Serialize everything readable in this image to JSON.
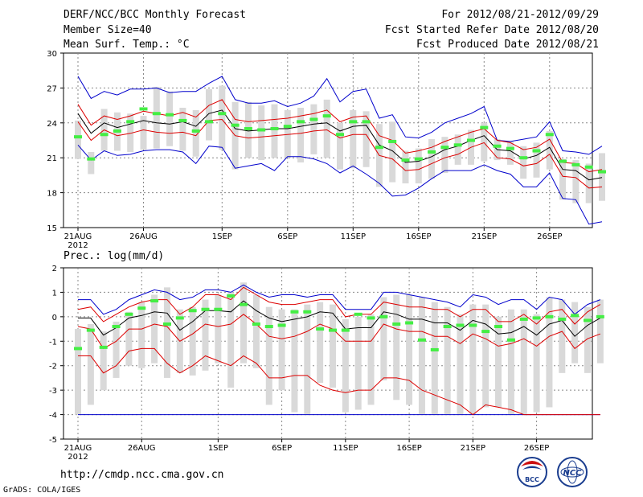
{
  "header": {
    "title": "DERF/NCC/BCC Monthly Forecast",
    "member_size": "Member Size=40",
    "variable": "Mean Surf. Temp.: °C",
    "period": "For 2012/08/21-2012/09/29",
    "refer_date": "Fcst Started Refer Date 2012/08/20",
    "produced_date": "Fcst Produced Date 2012/08/21"
  },
  "footer": {
    "url": "http://cmdp.ncc.cma.gov.cn",
    "credit": "GrADS: COLA/IGES",
    "logo_left": "BCC",
    "logo_right": "NCC"
  },
  "colors": {
    "box": "#d9d9d9",
    "ensemble_mean": "#000000",
    "std_band": "#dd0000",
    "min_max": "#0000cc",
    "observed": "#44ee44",
    "grid": "#888888"
  },
  "chart_data": [
    {
      "type": "box",
      "title": "Mean Surf. Temp.: °C",
      "ylim": [
        15,
        30
      ],
      "yticks": [
        15,
        18,
        21,
        24,
        27,
        30
      ],
      "xlim": [
        0,
        39
      ],
      "xticks": [
        {
          "day": 0,
          "label": "21AUG"
        },
        {
          "day": 5,
          "label": "26AUG"
        },
        {
          "day": 11,
          "label": "1SEP"
        },
        {
          "day": 16,
          "label": "6SEP"
        },
        {
          "day": 21,
          "label": "11SEP"
        },
        {
          "day": 26,
          "label": "16SEP"
        },
        {
          "day": 31,
          "label": "21SEP"
        },
        {
          "day": 36,
          "label": "26SEP"
        }
      ],
      "year_label": "2012",
      "series": {
        "mean": [
          24.8,
          23.1,
          24.0,
          23.6,
          23.9,
          24.2,
          24.0,
          23.9,
          24.1,
          23.7,
          24.8,
          25.1,
          23.5,
          23.3,
          23.4,
          23.5,
          23.5,
          23.7,
          23.9,
          24.0,
          23.3,
          23.7,
          23.8,
          22.1,
          21.6,
          20.6,
          20.7,
          21.1,
          21.7,
          22.0,
          22.5,
          22.9,
          21.7,
          21.6,
          20.9,
          21.2,
          21.9,
          20.0,
          19.9,
          19.1,
          19.3
        ],
        "upper": [
          25.6,
          23.8,
          24.6,
          24.3,
          24.6,
          25.0,
          24.8,
          24.6,
          24.9,
          24.5,
          25.5,
          26.0,
          24.3,
          24.1,
          24.2,
          24.3,
          24.4,
          24.6,
          24.8,
          25.1,
          24.1,
          24.5,
          24.6,
          22.9,
          22.5,
          21.4,
          21.6,
          21.9,
          22.4,
          22.8,
          23.2,
          23.5,
          22.5,
          22.3,
          21.7,
          21.9,
          22.6,
          20.6,
          20.5,
          19.8,
          20.0
        ],
        "lower": [
          24.1,
          22.5,
          23.4,
          22.9,
          23.1,
          23.4,
          23.2,
          23.1,
          23.2,
          22.9,
          24.2,
          24.3,
          22.9,
          22.7,
          22.8,
          22.9,
          23.0,
          23.1,
          23.3,
          23.4,
          22.7,
          23.0,
          23.0,
          21.2,
          20.9,
          19.9,
          20.0,
          20.5,
          21.0,
          21.3,
          21.9,
          22.3,
          21.0,
          20.9,
          20.3,
          20.5,
          21.3,
          19.4,
          19.3,
          18.4,
          18.5
        ],
        "max": [
          28.0,
          26.1,
          26.7,
          26.4,
          26.9,
          26.9,
          27.0,
          26.6,
          26.7,
          26.7,
          27.4,
          28.0,
          26.0,
          25.7,
          25.7,
          25.9,
          25.4,
          25.7,
          26.3,
          27.8,
          25.8,
          26.7,
          26.9,
          24.4,
          24.7,
          22.8,
          22.7,
          23.2,
          24.0,
          24.4,
          24.8,
          25.4,
          22.5,
          22.4,
          22.6,
          22.8,
          24.1,
          21.6,
          21.5,
          21.3,
          22.0
        ],
        "min": [
          22.1,
          20.8,
          21.6,
          21.2,
          21.3,
          21.6,
          21.7,
          21.7,
          21.5,
          20.5,
          22.0,
          21.9,
          20.1,
          20.3,
          20.5,
          19.9,
          21.1,
          21.1,
          20.9,
          20.5,
          19.7,
          20.3,
          19.6,
          18.8,
          17.7,
          17.8,
          18.4,
          19.2,
          19.9,
          19.9,
          19.9,
          20.4,
          19.9,
          19.6,
          18.5,
          18.5,
          19.7,
          17.5,
          17.4,
          15.3,
          15.5
        ],
        "box_top": [
          24.2,
          21.5,
          25.2,
          24.9,
          24.8,
          24.6,
          27.1,
          26.7,
          25.3,
          25.1,
          26.9,
          27.2,
          25.8,
          25.8,
          25.5,
          25.6,
          25.1,
          25.3,
          25.6,
          26.0,
          24.0,
          25.1,
          25.0,
          23.9,
          24.1,
          21.6,
          21.8,
          22.6,
          22.8,
          23.0,
          23.4,
          24.0,
          22.6,
          22.4,
          22.0,
          22.3,
          23.3,
          20.9,
          20.8,
          20.5,
          21.4
        ],
        "box_bottom": [
          20.9,
          19.6,
          21.6,
          21.6,
          21.5,
          21.7,
          21.8,
          22.0,
          21.6,
          21.1,
          22.5,
          21.7,
          20.0,
          21.0,
          20.8,
          21.0,
          21.0,
          20.6,
          21.3,
          21.0,
          20.0,
          20.1,
          20.2,
          18.5,
          18.9,
          18.8,
          18.8,
          19.2,
          19.7,
          20.4,
          20.4,
          20.7,
          20.8,
          20.4,
          19.2,
          19.3,
          20.0,
          17.4,
          17.1,
          17.1,
          17.3
        ],
        "observed": [
          22.8,
          20.9,
          23.0,
          23.3,
          24.1,
          25.2,
          24.8,
          24.7,
          24.2,
          23.3,
          24.1,
          24.8,
          23.8,
          23.5,
          23.4,
          23.5,
          23.7,
          24.1,
          24.3,
          24.6,
          23.0,
          24.1,
          24.1,
          21.9,
          22.4,
          20.8,
          20.9,
          21.5,
          21.9,
          22.1,
          22.5,
          23.6,
          22.0,
          21.8,
          21.0,
          21.6,
          23.0,
          20.7,
          20.4,
          20.2,
          19.8
        ]
      }
    },
    {
      "type": "box",
      "title": "Prec.: log(mm/d)",
      "ylim": [
        -5,
        2
      ],
      "yticks": [
        -5,
        -4,
        -3,
        -2,
        -1,
        0,
        1,
        2
      ],
      "xlim": [
        0,
        39
      ],
      "xticks": [
        {
          "day": 0,
          "label": "21AUG"
        },
        {
          "day": 5,
          "label": "26AUG"
        },
        {
          "day": 11,
          "label": "1SEP"
        },
        {
          "day": 16,
          "label": "6SEP"
        },
        {
          "day": 21,
          "label": "11SEP"
        },
        {
          "day": 26,
          "label": "16SEP"
        },
        {
          "day": 31,
          "label": "21SEP"
        },
        {
          "day": 36,
          "label": "26SEP"
        }
      ],
      "year_label": "2012",
      "series": {
        "mean": [
          -0.05,
          -0.05,
          -0.75,
          -0.45,
          -0.05,
          0.05,
          0.2,
          0.15,
          -0.55,
          -0.2,
          0.25,
          0.25,
          0.2,
          0.65,
          0.25,
          -0.05,
          -0.2,
          -0.1,
          0.0,
          0.2,
          0.15,
          -0.5,
          -0.45,
          -0.45,
          0.2,
          0.1,
          -0.1,
          -0.1,
          -0.25,
          -0.25,
          -0.55,
          -0.15,
          -0.3,
          -0.7,
          -0.65,
          -0.4,
          -0.75,
          -0.3,
          -0.15,
          -0.8,
          -0.35,
          -0.05
        ],
        "upper": [
          0.3,
          0.4,
          -0.2,
          0.1,
          0.4,
          0.6,
          0.7,
          0.7,
          0.1,
          0.4,
          0.9,
          0.9,
          0.7,
          1.2,
          0.9,
          0.6,
          0.5,
          0.5,
          0.6,
          0.7,
          0.7,
          0.0,
          0.1,
          0.1,
          0.6,
          0.5,
          0.4,
          0.4,
          0.3,
          0.3,
          0.0,
          0.3,
          0.3,
          -0.2,
          -0.2,
          0.1,
          -0.3,
          0.2,
          0.3,
          -0.3,
          0.2,
          0.5
        ],
        "lower": [
          -0.4,
          -0.5,
          -1.3,
          -1.0,
          -0.5,
          -0.5,
          -0.3,
          -0.4,
          -1.0,
          -0.7,
          -0.3,
          -0.4,
          -0.3,
          0.1,
          -0.3,
          -0.8,
          -0.9,
          -0.8,
          -0.6,
          -0.3,
          -0.5,
          -1.0,
          -1.0,
          -1.0,
          -0.3,
          -0.5,
          -0.6,
          -0.6,
          -0.8,
          -0.8,
          -1.1,
          -0.7,
          -0.9,
          -1.2,
          -1.1,
          -0.9,
          -1.2,
          -0.8,
          -0.6,
          -1.3,
          -0.9,
          -0.7
        ],
        "max": [
          0.7,
          0.7,
          0.1,
          0.3,
          0.7,
          0.9,
          1.1,
          1.0,
          0.7,
          0.8,
          1.1,
          1.1,
          1.0,
          1.3,
          1.0,
          0.8,
          0.9,
          0.9,
          0.8,
          0.9,
          0.9,
          0.3,
          0.3,
          0.3,
          1.0,
          1.0,
          0.9,
          0.8,
          0.7,
          0.6,
          0.4,
          0.9,
          0.8,
          0.5,
          0.7,
          0.7,
          0.3,
          0.8,
          0.7,
          0.1,
          0.5,
          0.7
        ],
        "min": [
          -4.0,
          -4.0,
          -4.0,
          -4.0,
          -4.0,
          -4.0,
          -4.0,
          -4.0,
          -4.0,
          -4.0,
          -4.0,
          -4.0,
          -4.0,
          -4.0,
          -4.0,
          -4.0,
          -4.0,
          -4.0,
          -4.0,
          -4.0,
          -4.0,
          -4.0,
          -4.0,
          -4.0,
          -4.0,
          -4.0,
          -4.0,
          -4.0,
          -4.0,
          -4.0,
          -4.0,
          -4.0,
          -4.0,
          -4.0,
          -4.0,
          -4.0,
          -4.0,
          -4.0,
          -4.0,
          -4.0,
          -4.0,
          -4.0
        ],
        "min_upper": [
          -1.6,
          -1.6,
          -2.3,
          -2.0,
          -1.4,
          -1.3,
          -1.3,
          -1.9,
          -2.3,
          -2.0,
          -1.6,
          -1.8,
          -2.0,
          -1.6,
          -1.9,
          -2.5,
          -2.5,
          -2.4,
          -2.4,
          -2.8,
          -3.0,
          -3.1,
          -3.0,
          -3.0,
          -2.5,
          -2.5,
          -2.6,
          -3.0,
          -3.2,
          -3.4,
          -3.6,
          -4.0,
          -3.6,
          -3.7,
          -3.8,
          -4.0,
          -4.0,
          -4.0,
          -4.0,
          -4.0,
          -4.0,
          -4.0
        ],
        "box_top": [
          -0.5,
          -0.3,
          -0.6,
          -0.2,
          0.2,
          0.6,
          0.9,
          1.2,
          0.3,
          0.4,
          0.7,
          0.9,
          1.0,
          1.4,
          0.9,
          0.4,
          0.3,
          0.3,
          0.5,
          0.6,
          0.5,
          -0.1,
          0.0,
          0.1,
          0.8,
          0.9,
          0.9,
          0.8,
          0.6,
          0.4,
          0.1,
          0.5,
          0.5,
          0.0,
          0.3,
          0.3,
          0.1,
          0.8,
          0.7,
          0.6,
          0.4,
          0.7
        ],
        "box_bottom": [
          -4.0,
          -3.6,
          -3.0,
          -2.5,
          -2.0,
          -2.1,
          -1.9,
          -2.5,
          -2.3,
          -2.4,
          -2.2,
          -1.9,
          -2.9,
          -1.9,
          -2.1,
          -3.6,
          -3.0,
          -3.9,
          -4.0,
          -2.7,
          -2.9,
          -3.9,
          -3.8,
          -3.6,
          -2.6,
          -3.4,
          -3.6,
          -4.0,
          -4.0,
          -4.0,
          -4.0,
          -4.0,
          -3.7,
          -3.7,
          -4.0,
          -4.0,
          -3.9,
          -3.7,
          -2.3,
          -1.9,
          -2.3,
          -1.9
        ],
        "observed": [
          -1.3,
          -0.55,
          -1.25,
          -0.4,
          0.1,
          0.35,
          0.65,
          -0.3,
          -0.05,
          0.25,
          0.3,
          0.3,
          0.85,
          0.5,
          -0.3,
          -0.4,
          -0.35,
          0.2,
          0.2,
          -0.5,
          -0.55,
          -0.55,
          0.1,
          -0.05,
          0.0,
          -0.3,
          -0.25,
          -0.95,
          -1.35,
          -0.4,
          -0.35,
          -0.35,
          -0.6,
          -0.4,
          -0.95,
          -0.1,
          -0.05,
          0.0,
          -0.1,
          0.05,
          -0.15,
          0.0
        ]
      }
    }
  ]
}
